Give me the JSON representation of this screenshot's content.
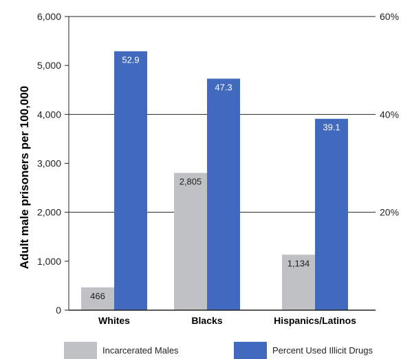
{
  "chart_data": {
    "type": "bar",
    "categories": [
      "Whites",
      "Blacks",
      "Hispanics/Latinos"
    ],
    "series": [
      {
        "name": "Incarcerated Males",
        "axis": "left",
        "values": [
          466,
          2805,
          1134
        ],
        "labels": [
          "466",
          "2,805",
          "1,134"
        ],
        "color": "#c0c1c4"
      },
      {
        "name": "Percent Used Illicit Drugs",
        "axis": "right",
        "values": [
          52.9,
          47.3,
          39.1
        ],
        "labels": [
          "52.9",
          "47.3",
          "39.1"
        ],
        "color": "#4169be"
      }
    ],
    "ylabel": "Adult male prisoners per 100,000",
    "ylim": [
      0,
      6000
    ],
    "yticks": [
      "0",
      "1,000",
      "2,000",
      "3,000",
      "4,000",
      "5,000",
      "6,000"
    ],
    "y2lim": [
      0,
      60
    ],
    "y2ticks": [
      "20%",
      "40%",
      "60%"
    ],
    "grid": "right axis gridlines at 20%, 40%, 60%",
    "legend_position": "bottom"
  }
}
